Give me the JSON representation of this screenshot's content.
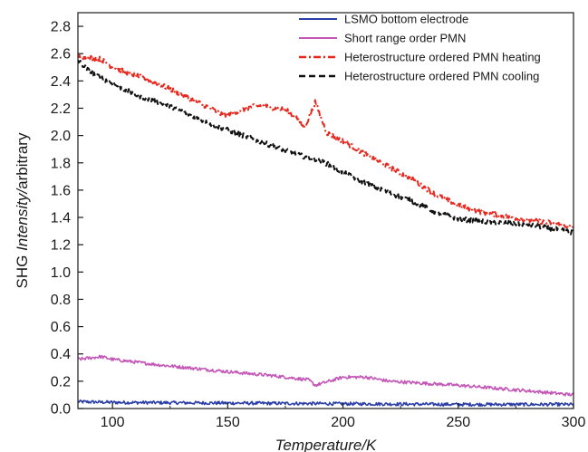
{
  "chart_data": {
    "type": "line",
    "xlabel": "Temperature/K",
    "ylabel_parts": [
      "SHG ",
      "Intensity/",
      "arbitrary"
    ],
    "xlim": [
      85,
      300
    ],
    "ylim": [
      0.0,
      2.9
    ],
    "x_ticks": [
      100,
      150,
      200,
      250,
      300
    ],
    "x_tick_labels": [
      "100",
      "150",
      "200",
      "250",
      "300"
    ],
    "y_ticks": [
      0.0,
      0.2,
      0.4,
      0.6,
      0.8,
      1.0,
      1.2,
      1.4,
      1.6,
      1.8,
      2.0,
      2.2,
      2.4,
      2.6,
      2.8
    ],
    "y_tick_labels": [
      "0.0",
      "0.2",
      "0.4",
      "0.6",
      "0.8",
      "1.0",
      "1.2",
      "1.4",
      "1.6",
      "1.8",
      "2.0",
      "2.2",
      "2.4",
      "2.6",
      "2.8"
    ],
    "grid": false,
    "legend_position": "top-right",
    "series": [
      {
        "name": "LSMO bottom electrode",
        "color": "#2b3ea8",
        "style": "solid",
        "noise": 0.012,
        "x": [
          85,
          100,
          150,
          200,
          250,
          300
        ],
        "values": [
          0.05,
          0.045,
          0.04,
          0.035,
          0.03,
          0.03
        ]
      },
      {
        "name": "Short range order PMN",
        "color": "#c456b8",
        "style": "solid",
        "noise": 0.012,
        "x": [
          85,
          95,
          100,
          120,
          150,
          170,
          185,
          188,
          192,
          200,
          210,
          220,
          250,
          280,
          300
        ],
        "values": [
          0.36,
          0.38,
          0.36,
          0.32,
          0.27,
          0.24,
          0.21,
          0.17,
          0.19,
          0.23,
          0.23,
          0.2,
          0.17,
          0.13,
          0.1
        ]
      },
      {
        "name": "Heterostructure ordered PMN heating",
        "color": "#e8281e",
        "style": "dashdot",
        "noise": 0.018,
        "x": [
          85,
          95,
          100,
          110,
          120,
          130,
          140,
          148,
          155,
          160,
          165,
          170,
          175,
          180,
          183,
          185,
          187,
          188,
          190,
          193,
          200,
          210,
          220,
          230,
          240,
          250,
          260,
          270,
          280,
          290,
          300
        ],
        "values": [
          2.58,
          2.56,
          2.5,
          2.44,
          2.38,
          2.3,
          2.22,
          2.15,
          2.18,
          2.21,
          2.22,
          2.2,
          2.19,
          2.13,
          2.06,
          2.12,
          2.2,
          2.25,
          2.15,
          2.02,
          1.96,
          1.86,
          1.77,
          1.68,
          1.57,
          1.49,
          1.44,
          1.41,
          1.38,
          1.36,
          1.33
        ]
      },
      {
        "name": "Heterostructure ordered PMN cooling",
        "color": "#111111",
        "style": "dashed",
        "noise": 0.018,
        "x": [
          85,
          90,
          100,
          110,
          120,
          130,
          140,
          150,
          160,
          170,
          180,
          190,
          200,
          210,
          220,
          230,
          240,
          250,
          260,
          270,
          280,
          290,
          300
        ],
        "values": [
          2.55,
          2.47,
          2.38,
          2.3,
          2.24,
          2.18,
          2.1,
          2.04,
          1.98,
          1.92,
          1.86,
          1.82,
          1.73,
          1.65,
          1.58,
          1.52,
          1.44,
          1.39,
          1.37,
          1.36,
          1.35,
          1.32,
          1.29
        ]
      }
    ]
  }
}
